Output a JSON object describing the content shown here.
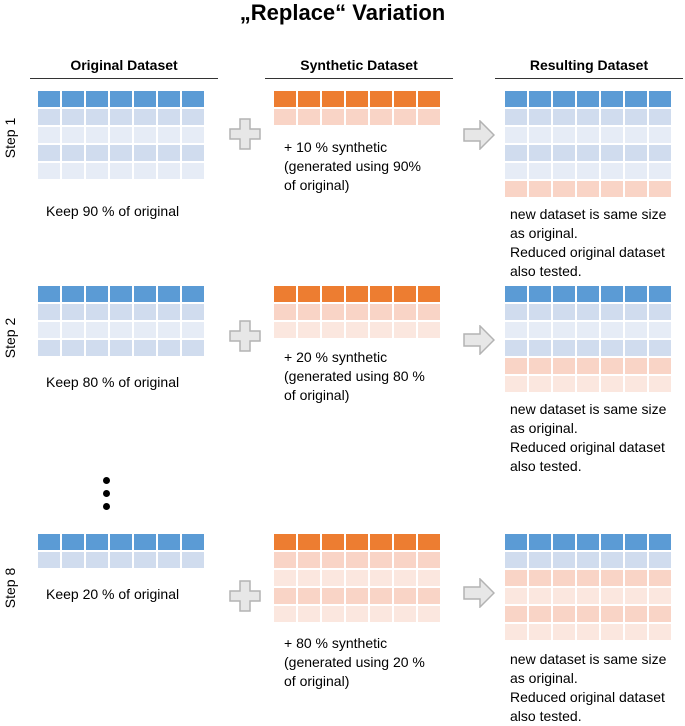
{
  "title": "„Replace“ Variation",
  "columns": {
    "original": "Original Dataset",
    "synthetic": "Synthetic Dataset",
    "resulting": "Resulting Dataset"
  },
  "steps": [
    {
      "label": "Step 1",
      "keep_text": "Keep 90 % of original",
      "synthetic_lines": [
        "+ 10 % synthetic",
        "(generated using 90%",
        "of original)"
      ],
      "result_lines": [
        "new dataset is same size",
        "as original.",
        "Reduced original dataset",
        "also tested."
      ]
    },
    {
      "label": "Step 2",
      "keep_text": "Keep 80 % of original",
      "synthetic_lines": [
        "+ 20 % synthetic",
        "(generated using 80 %",
        "of original)"
      ],
      "result_lines": [
        "new dataset is same size",
        "as original.",
        "Reduced original dataset",
        "also tested."
      ]
    },
    {
      "label": "Step 8",
      "keep_text": "Keep 20 % of original",
      "synthetic_lines": [
        "+ 80 % synthetic",
        "(generated using 20 %",
        "of original)"
      ],
      "result_lines": [
        "new dataset is same size",
        "as original.",
        "Reduced original dataset",
        "also tested."
      ]
    }
  ],
  "colors": {
    "original_header": "#5b9bd5",
    "original_rows": "#d0dcee",
    "synthetic_header": "#ed7d31",
    "synthetic_rows": "#f9d4c6",
    "arrow": "#d9d9d9"
  }
}
